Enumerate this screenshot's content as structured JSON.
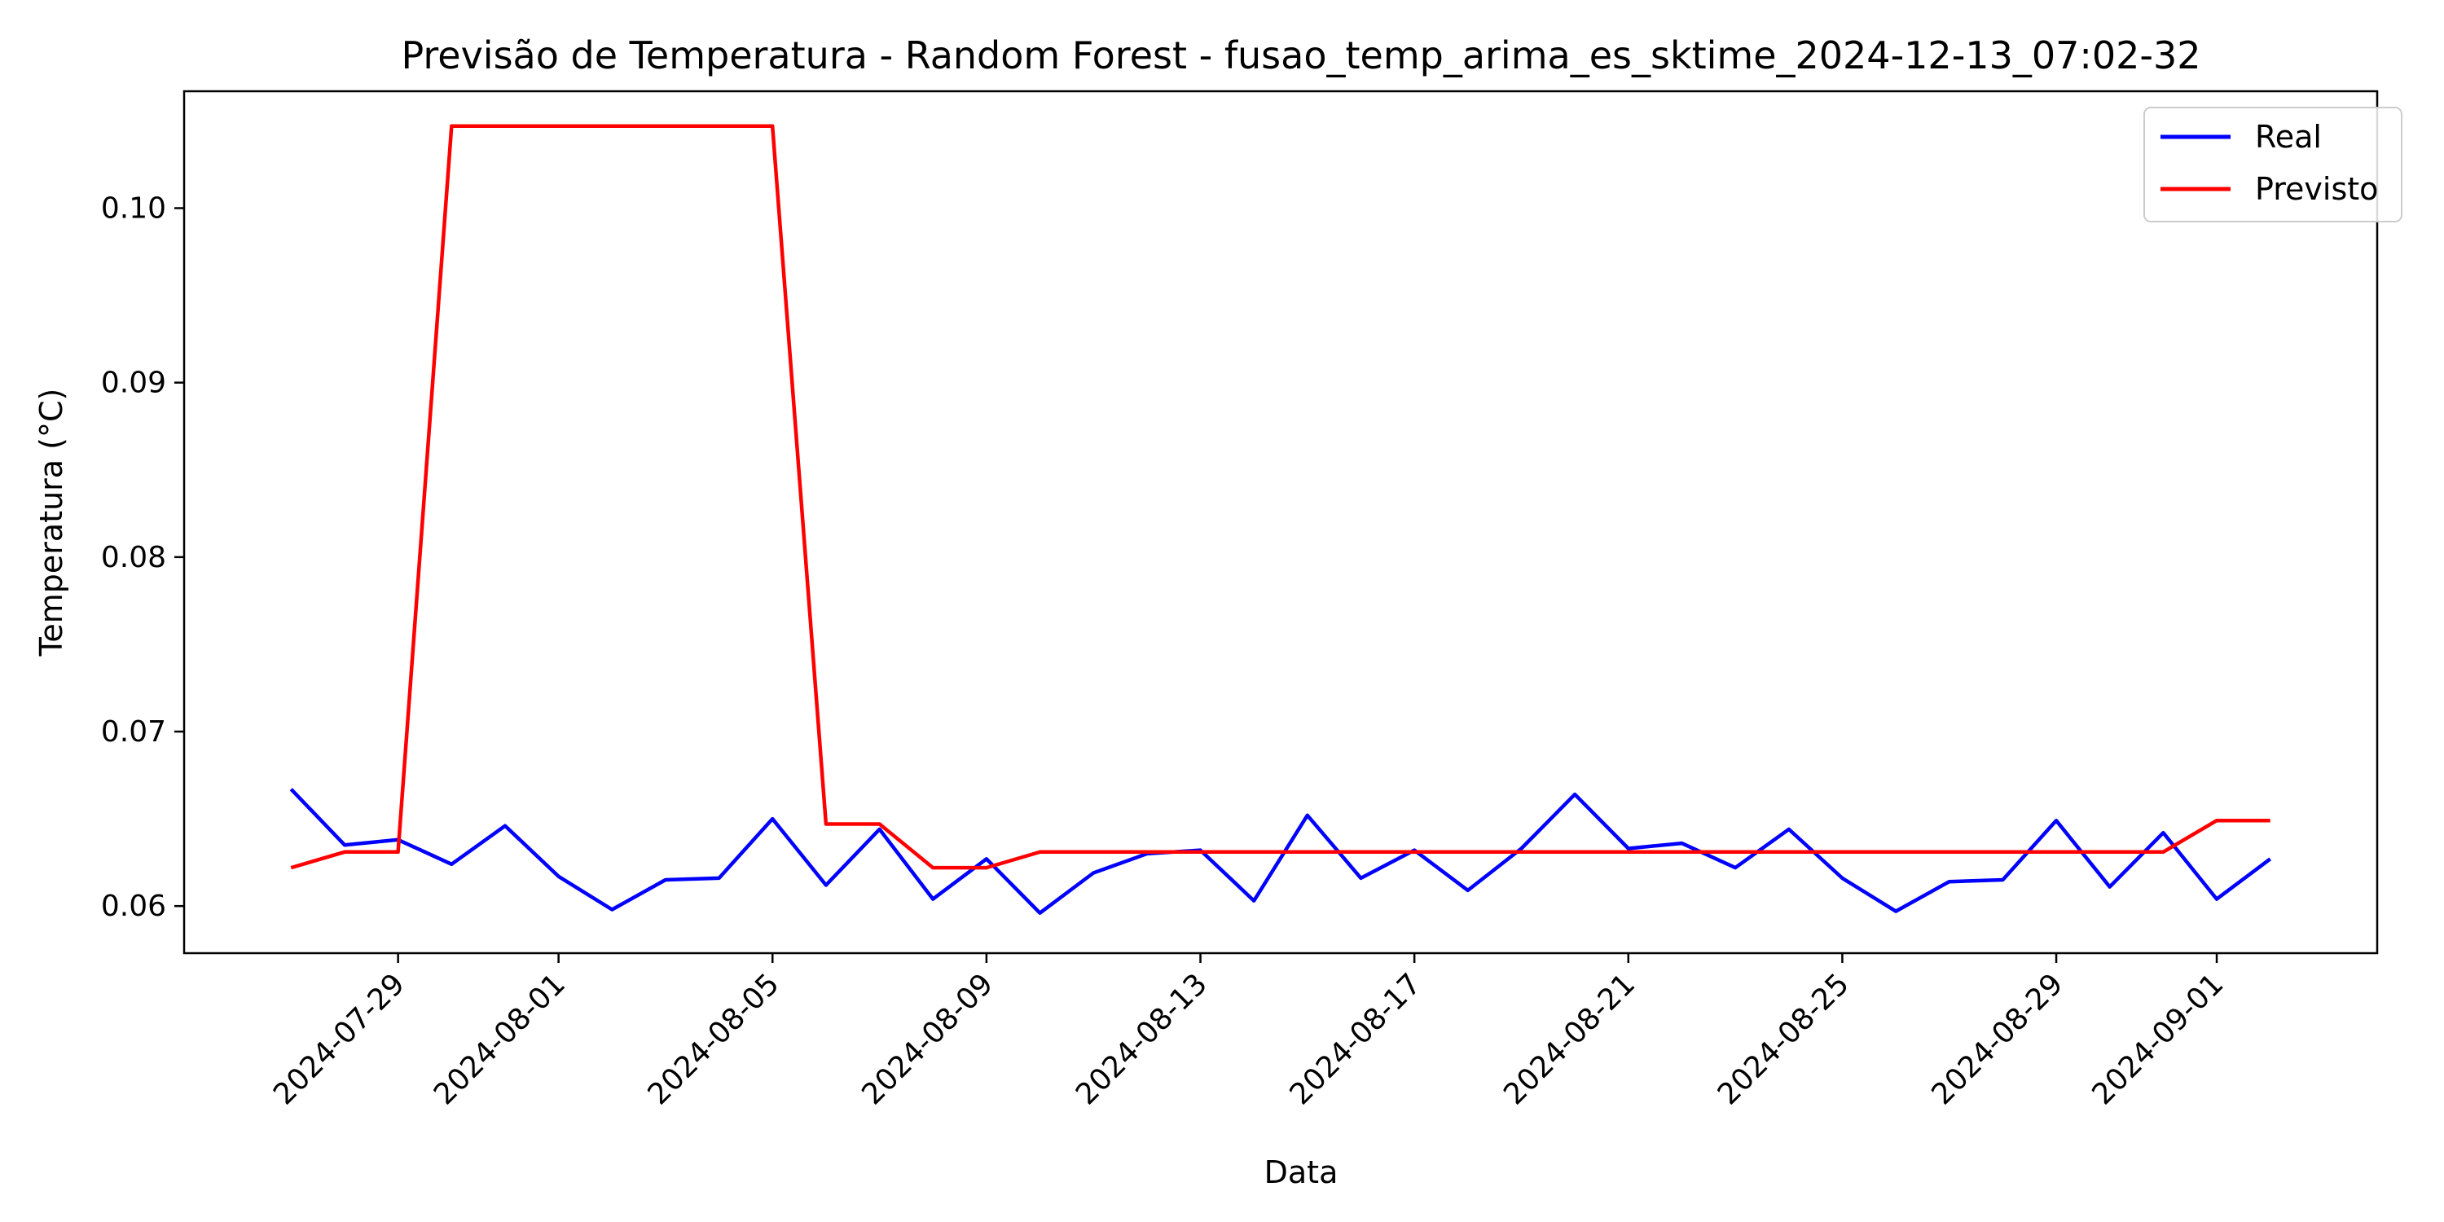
{
  "chart_data": {
    "type": "line",
    "title": "Previsão de Temperatura - Random Forest - fusao_temp_arima_es_sktime_2024-12-13_07:02-32",
    "xlabel": "Data",
    "ylabel": "Temperatura (°C)",
    "x": [
      "2024-07-27",
      "2024-07-28",
      "2024-07-29",
      "2024-07-30",
      "2024-07-31",
      "2024-08-01",
      "2024-08-02",
      "2024-08-03",
      "2024-08-04",
      "2024-08-05",
      "2024-08-06",
      "2024-08-07",
      "2024-08-08",
      "2024-08-09",
      "2024-08-10",
      "2024-08-11",
      "2024-08-12",
      "2024-08-13",
      "2024-08-14",
      "2024-08-15",
      "2024-08-16",
      "2024-08-17",
      "2024-08-18",
      "2024-08-19",
      "2024-08-20",
      "2024-08-21",
      "2024-08-22",
      "2024-08-23",
      "2024-08-24",
      "2024-08-25",
      "2024-08-26",
      "2024-08-27",
      "2024-08-28",
      "2024-08-29",
      "2024-08-30",
      "2024-08-31",
      "2024-09-01",
      "2024-09-02"
    ],
    "series": [
      {
        "name": "Real",
        "color": "#0000ff",
        "values": [
          0.0667,
          0.0635,
          0.0638,
          0.0624,
          0.0646,
          0.0617,
          0.0598,
          0.0615,
          0.0616,
          0.065,
          0.0612,
          0.0644,
          0.0604,
          0.0627,
          0.0596,
          0.0619,
          0.063,
          0.0632,
          0.0603,
          0.0652,
          0.0616,
          0.0632,
          0.0609,
          0.0633,
          0.0664,
          0.0633,
          0.0636,
          0.0622,
          0.0644,
          0.0616,
          0.0597,
          0.0614,
          0.0615,
          0.0649,
          0.0611,
          0.0642,
          0.0604,
          0.0627
        ]
      },
      {
        "name": "Previsto",
        "color": "#ff0000",
        "values": [
          0.0622,
          0.0631,
          0.0631,
          0.1047,
          0.1047,
          0.1047,
          0.1047,
          0.1047,
          0.1047,
          0.1047,
          0.0647,
          0.0647,
          0.0622,
          0.0622,
          0.0631,
          0.0631,
          0.0631,
          0.0631,
          0.0631,
          0.0631,
          0.0631,
          0.0631,
          0.0631,
          0.0631,
          0.0631,
          0.0631,
          0.0631,
          0.0631,
          0.0631,
          0.0631,
          0.0631,
          0.0631,
          0.0631,
          0.0631,
          0.0631,
          0.0631,
          0.0649,
          0.0649
        ]
      }
    ],
    "x_ticks": [
      "2024-07-29",
      "2024-08-01",
      "2024-08-05",
      "2024-08-09",
      "2024-08-13",
      "2024-08-17",
      "2024-08-21",
      "2024-08-25",
      "2024-08-29",
      "2024-09-01"
    ],
    "y_ticks": [
      "0.06",
      "0.07",
      "0.08",
      "0.09",
      "0.10"
    ],
    "xlim": [
      "2024-07-25",
      "2024-09-04"
    ],
    "ylim": [
      0.0573,
      0.1067
    ],
    "grid": false,
    "legend_position": "top-right"
  }
}
